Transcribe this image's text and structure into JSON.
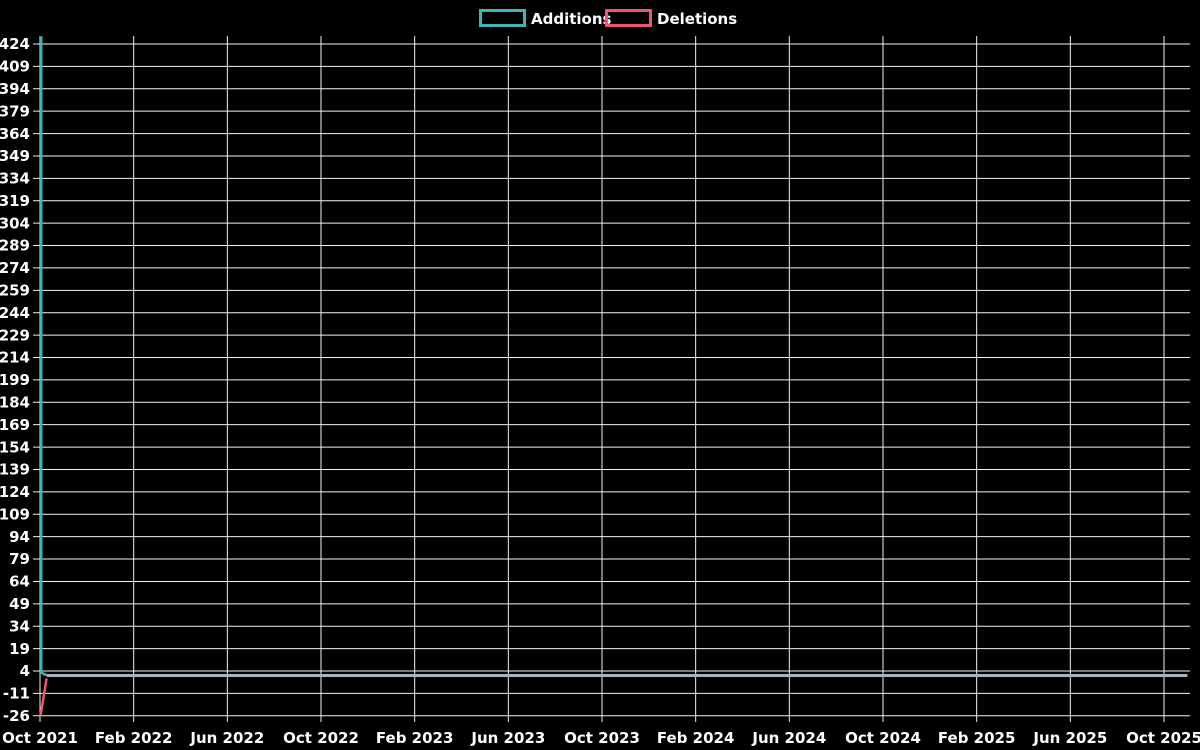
{
  "page": {
    "background_color": "#000000",
    "text_color": "#ffffff",
    "grid_color": "#f2f2f2"
  },
  "legend": {
    "items": [
      {
        "label": "Additions",
        "color": "#3cb6b6"
      },
      {
        "label": "Deletions",
        "color": "#ef5672"
      }
    ]
  },
  "chart_data": {
    "type": "line",
    "title": "",
    "xlabel": "",
    "ylabel": "",
    "grid": true,
    "legend_position": "top-center",
    "x_tick_labels": [
      "Oct 2021",
      "Feb 2022",
      "Jun 2022",
      "Oct 2022",
      "Feb 2023",
      "Jun 2023",
      "Oct 2023",
      "Feb 2024",
      "Jun 2024",
      "Oct 2024",
      "Feb 2025",
      "Jun 2025",
      "Oct 2025"
    ],
    "y_tick_labels": [
      424,
      409,
      394,
      379,
      364,
      349,
      334,
      319,
      304,
      289,
      274,
      259,
      244,
      229,
      214,
      199,
      184,
      169,
      154,
      139,
      124,
      109,
      94,
      79,
      64,
      49,
      34,
      19,
      4,
      -11,
      -26
    ],
    "ylim": [
      -26,
      429
    ],
    "x_months_range": [
      0,
      49
    ],
    "series": [
      {
        "name": "Additions",
        "color": "#3cb6b6",
        "points_month_value": [
          [
            0,
            429
          ],
          [
            0.3,
            2
          ],
          [
            49,
            2
          ]
        ]
      },
      {
        "name": "Deletions",
        "color": "#ef5672",
        "points_month_value": [
          [
            0,
            -26
          ],
          [
            0.3,
            0
          ],
          [
            49,
            0
          ]
        ]
      }
    ],
    "rendered_segments": [
      {
        "name": "deletions-rise",
        "color": "#ef5672",
        "width": 2.5,
        "points": [
          [
            0.02,
            -26
          ],
          [
            0.28,
            -1
          ]
        ]
      },
      {
        "name": "additions-spike",
        "color": "#3cb6b6",
        "width": 2.5,
        "points": [
          [
            0.05,
            429
          ],
          [
            0.05,
            3
          ],
          [
            0.3,
            1
          ]
        ]
      },
      {
        "name": "flat-overlap",
        "color": "#a2b6be",
        "width": 3,
        "points": [
          [
            0.3,
            1
          ],
          [
            49,
            1
          ]
        ]
      }
    ]
  }
}
